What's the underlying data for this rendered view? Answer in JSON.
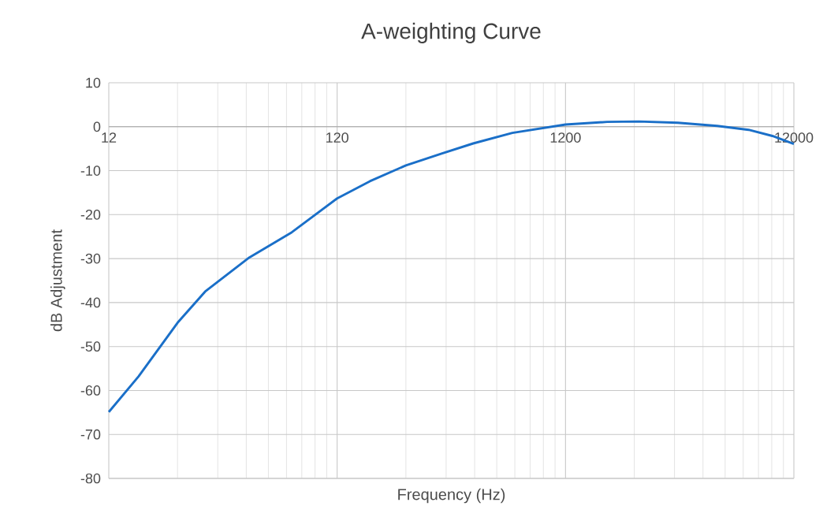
{
  "chart_data": {
    "type": "line",
    "title": "A-weighting Curve",
    "xlabel": "Frequency (Hz)",
    "ylabel": "dB Adjustment",
    "x": [
      12,
      16.2,
      24,
      31.7,
      49,
      76,
      120,
      167,
      240,
      344,
      473,
      702,
      1200,
      1826,
      2510,
      3724,
      5542,
      7600,
      9660,
      12000
    ],
    "series": [
      {
        "color": "#1a6fc8",
        "values": [
          -64.9,
          -56.8,
          -44.6,
          -37.5,
          -29.9,
          -24.0,
          -16.3,
          -12.4,
          -8.8,
          -6.1,
          -3.8,
          -1.4,
          0.5,
          1.1,
          1.2,
          0.9,
          0.2,
          -0.7,
          -2.1,
          -3.9
        ]
      }
    ],
    "xlim": [
      12,
      12000
    ],
    "ylim": [
      -80,
      10
    ],
    "xticks": [
      12,
      120,
      1200,
      12000
    ],
    "yticks": [
      -80,
      -70,
      -60,
      -50,
      -40,
      -30,
      -20,
      -10,
      0,
      10
    ],
    "log": "x",
    "grid": true,
    "marker": "none",
    "line_style": "solid"
  }
}
